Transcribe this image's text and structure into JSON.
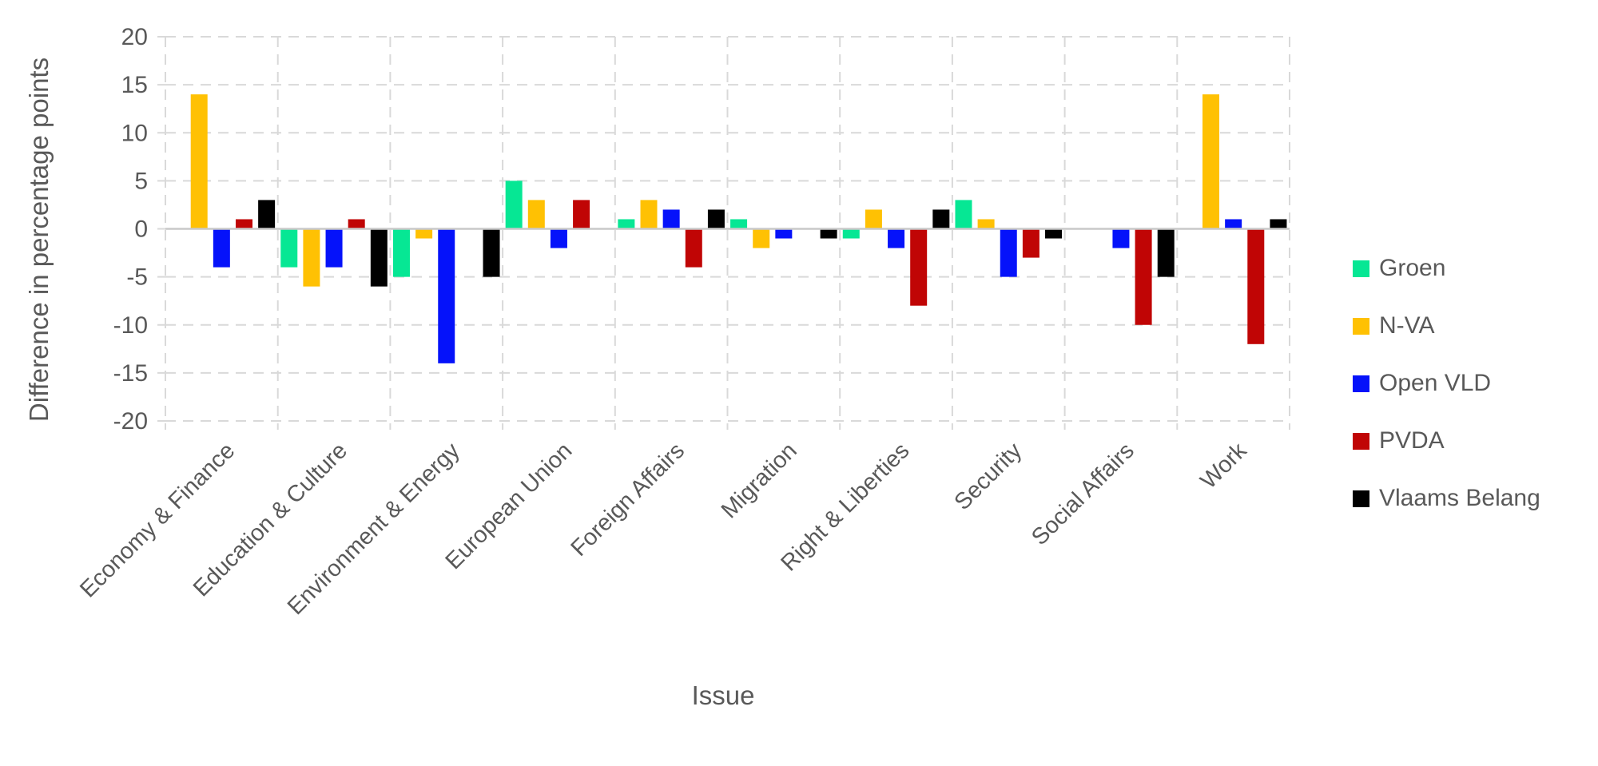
{
  "colors": {
    "background": "#ffffff",
    "axis_text": "#595959",
    "grid": "#d9d9d9",
    "zero_line": "#c9c9c9"
  },
  "chart_data": {
    "type": "bar",
    "title": "",
    "xlabel": "Issue",
    "ylabel": "Difference in percentage points",
    "ylim": [
      -20,
      20
    ],
    "yticks": [
      20,
      15,
      10,
      5,
      0,
      -5,
      -10,
      -15,
      -20
    ],
    "grid": "dashed",
    "legend_position": "right",
    "categories": [
      "Economy & Finance",
      "Education & Culture",
      "Environment & Energy",
      "European Union",
      "Foreign Affairs",
      "Migration",
      "Right & Liberties",
      "Security",
      "Social Affairs",
      "Work"
    ],
    "series": [
      {
        "name": "Groen",
        "color": "#06e794",
        "values": [
          0,
          -4,
          -5,
          5,
          1,
          1,
          -1,
          3,
          0,
          0
        ]
      },
      {
        "name": "N-VA",
        "color": "#ffc103",
        "values": [
          14,
          -6,
          -1,
          3,
          3,
          -2,
          2,
          1,
          0,
          14
        ]
      },
      {
        "name": "Open VLD",
        "color": "#0512fa",
        "values": [
          -4,
          -4,
          -14,
          -2,
          2,
          -1,
          -2,
          -5,
          -2,
          1
        ]
      },
      {
        "name": "PVDA",
        "color": "#c00505",
        "values": [
          1,
          1,
          0,
          3,
          -4,
          0,
          -8,
          -3,
          -10,
          -12
        ]
      },
      {
        "name": "Vlaams Belang",
        "color": "#000000",
        "values": [
          3,
          -6,
          -5,
          0,
          2,
          -1,
          2,
          -1,
          -5,
          1
        ]
      }
    ]
  }
}
